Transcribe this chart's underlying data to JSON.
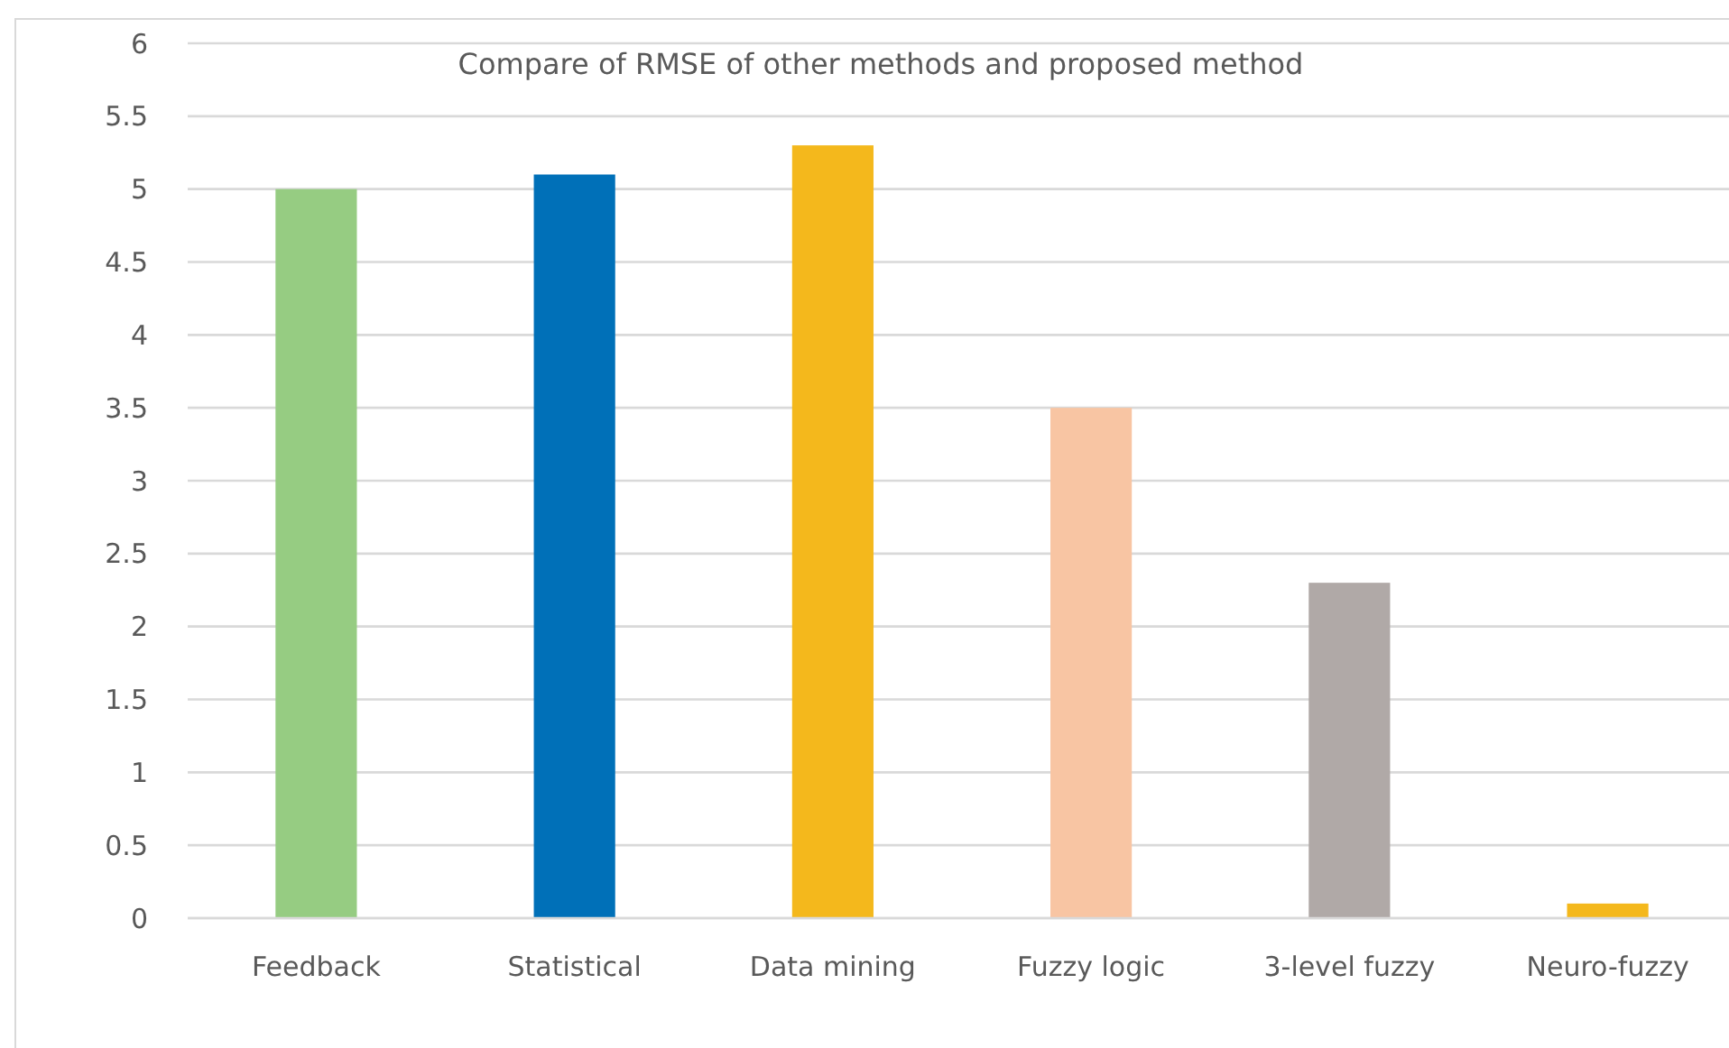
{
  "chart_data": {
    "type": "bar",
    "title": "Compare of RMSE of other methods and proposed method",
    "categories": [
      "Feedback",
      "Statistical",
      "Data mining",
      "Fuzzy logic",
      "3-level fuzzy",
      "Neuro-fuzzy"
    ],
    "values": [
      5.0,
      5.1,
      5.3,
      3.5,
      2.3,
      0.1
    ],
    "colors": [
      "#96cc82",
      "#0070b8",
      "#f4b81c",
      "#f8c5a3",
      "#b0a9a7",
      "#f4b81c"
    ],
    "ylim": [
      0,
      6
    ],
    "yticks": [
      0,
      0.5,
      1,
      1.5,
      2,
      2.5,
      3,
      3.5,
      4,
      4.5,
      5,
      5.5,
      6
    ],
    "grid": "y"
  }
}
